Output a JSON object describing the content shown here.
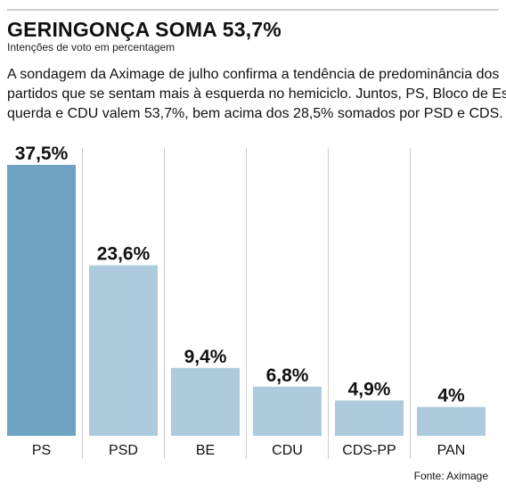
{
  "header": {
    "title": "GERINGONÇA SOMA 53,7%",
    "subtitle": "Intenções de voto em percentagem",
    "description_lines": [
      "A sondagem da Aximage de julho confirma a tendência de predominância dos",
      "partidos que se sentam mais à esquerda no hemiciclo. Juntos, PS, Bloco de Es-",
      "querda e CDU valem 53,7%, bem acima dos 28,5% somados por PSD e CDS."
    ]
  },
  "footer": {
    "source": "Fonte: Aximage"
  },
  "chart_data": {
    "type": "bar",
    "categories": [
      "PS",
      "PSD",
      "BE",
      "CDU",
      "CDS-PP",
      "PAN"
    ],
    "values": [
      37.5,
      23.6,
      9.4,
      6.8,
      4.9,
      4
    ],
    "value_labels": [
      "37,5%",
      "23,6%",
      "9,4%",
      "6,8%",
      "4,9%",
      "4%"
    ],
    "title": "GERINGONÇA SOMA 53,7%",
    "xlabel": "",
    "ylabel": "",
    "ylim": [
      0,
      37.5
    ],
    "grid": false,
    "legend": "none",
    "colors": {
      "highlight": "#6fa3c3",
      "default": "#adcbdc",
      "separator": "#cccccc",
      "text": "#111111"
    },
    "highlight_index": 0
  }
}
